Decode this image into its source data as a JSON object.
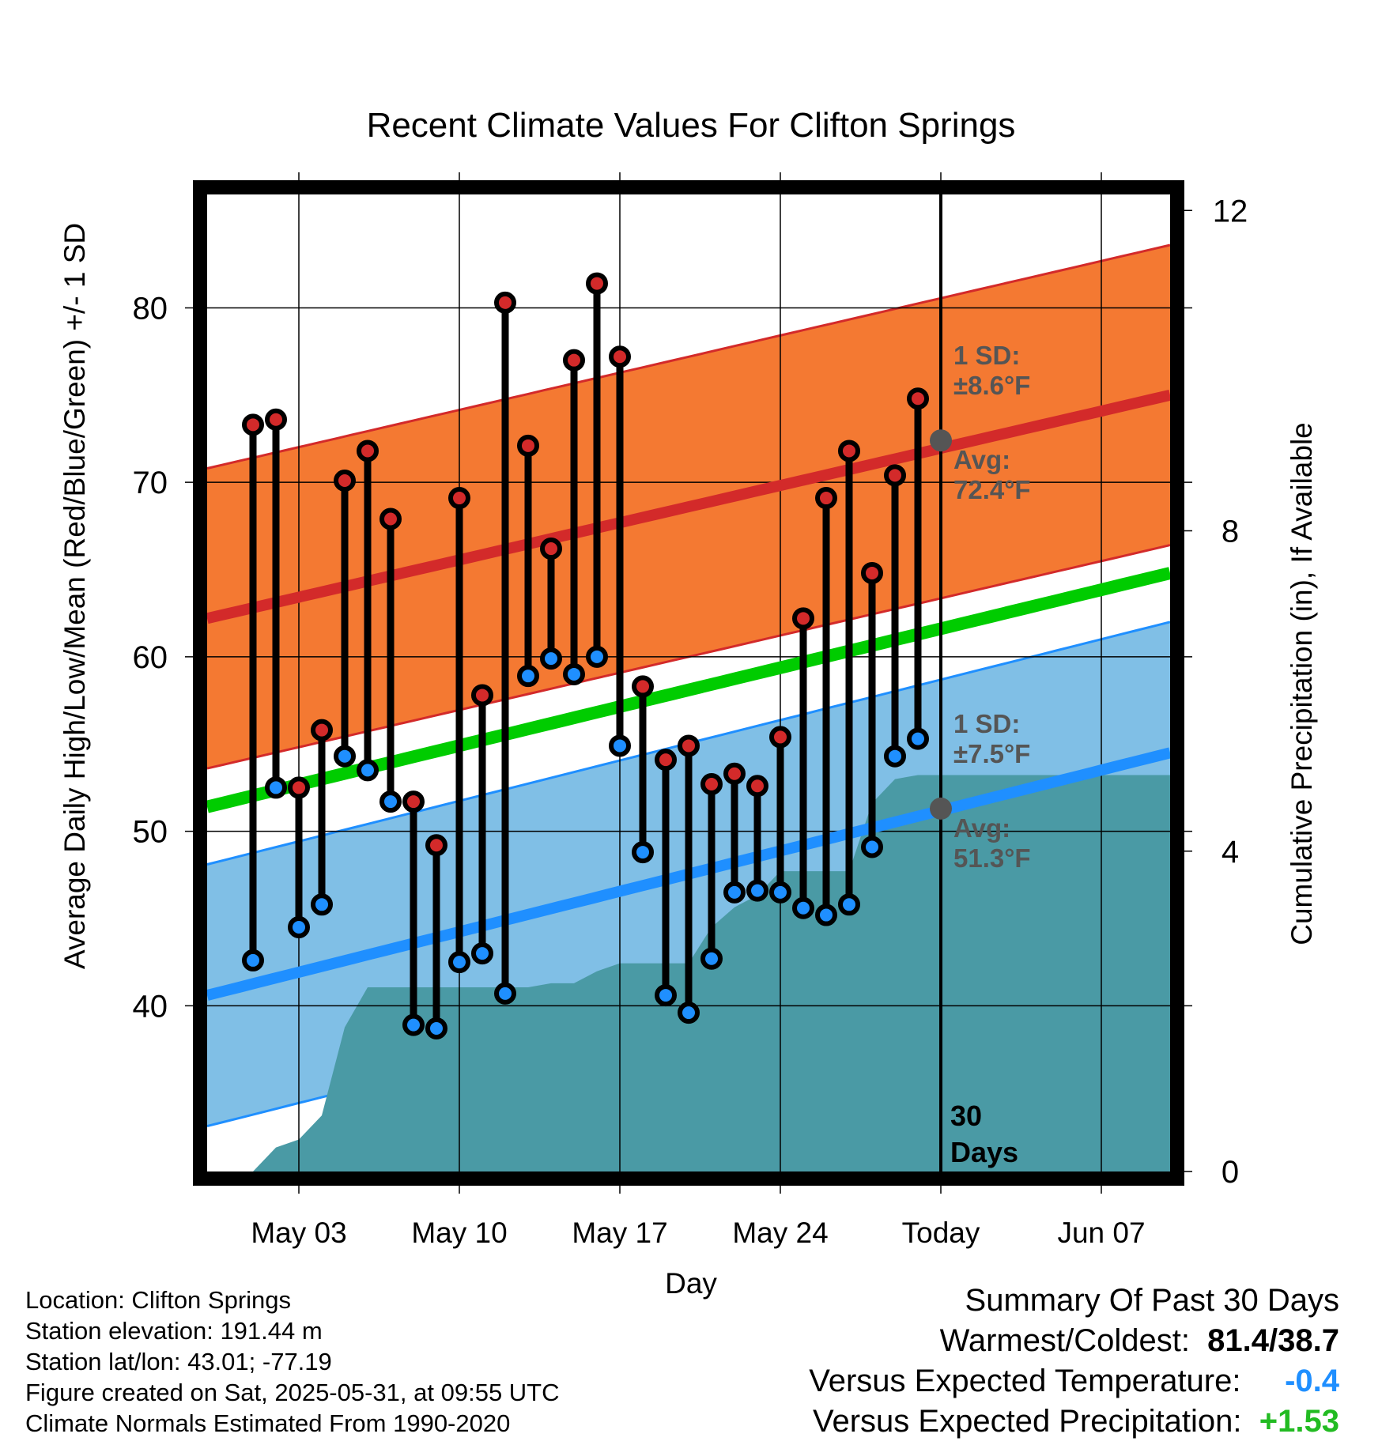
{
  "chart_data": {
    "type": "line",
    "title": "Recent Climate Values For Clifton Springs",
    "xlabel": "Day",
    "ylabel": "Average Daily High/Low/Mean (Red/Blue/Green) +/- 1 SD",
    "y2label": "Cumulative Precipitation (in), If Available",
    "x_range": [
      "Apr 29",
      "Jun 10"
    ],
    "ylim": [
      30.5,
      86.5
    ],
    "y2lim": [
      -0.0,
      12.2
    ],
    "x_ticks": [
      {
        "date": "May 03",
        "label": "May 03"
      },
      {
        "date": "May 10",
        "label": "May 10"
      },
      {
        "date": "May 17",
        "label": "May 17"
      },
      {
        "date": "May 24",
        "label": "May 24"
      },
      {
        "date": "May 31",
        "label": "Today"
      },
      {
        "date": "Jun 07",
        "label": "Jun 07"
      }
    ],
    "y_ticks": [
      40,
      50,
      60,
      70,
      80
    ],
    "y2_ticks": [
      0,
      4,
      8,
      12
    ],
    "grid": true,
    "today": "May 31",
    "today_label": "30\nDays",
    "dates": [
      "May 01",
      "May 02",
      "May 03",
      "May 04",
      "May 05",
      "May 06",
      "May 07",
      "May 08",
      "May 09",
      "May 10",
      "May 11",
      "May 12",
      "May 13",
      "May 14",
      "May 15",
      "May 16",
      "May 17",
      "May 18",
      "May 19",
      "May 20",
      "May 21",
      "May 22",
      "May 23",
      "May 24",
      "May 25",
      "May 26",
      "May 27",
      "May 28",
      "May 29",
      "May 30"
    ],
    "series": [
      {
        "name": "High",
        "color": "#d32a2a",
        "values": [
          73.3,
          73.6,
          52.5,
          55.8,
          70.1,
          71.8,
          67.9,
          51.7,
          49.2,
          69.1,
          57.8,
          80.3,
          72.1,
          66.2,
          77.0,
          81.4,
          77.2,
          58.3,
          54.1,
          54.9,
          52.7,
          53.3,
          52.6,
          55.4,
          62.2,
          69.1,
          71.8,
          64.8,
          70.4,
          74.8
        ]
      },
      {
        "name": "Low",
        "color": "#1f8fff",
        "values": [
          42.6,
          52.5,
          44.5,
          45.8,
          54.3,
          53.5,
          51.7,
          38.9,
          38.7,
          42.5,
          43.0,
          40.7,
          58.9,
          59.9,
          59.0,
          60.0,
          54.9,
          48.8,
          40.6,
          39.6,
          42.7,
          46.5,
          46.6,
          46.5,
          45.6,
          45.2,
          45.8,
          49.1,
          54.3,
          55.3
        ]
      }
    ],
    "normals": {
      "high": {
        "start": 62.2,
        "end": 75.0,
        "sd": 8.6,
        "avg_today": 72.4,
        "color": "#d32a2a",
        "band_color": "#f47932"
      },
      "low": {
        "start": 40.6,
        "end": 54.5,
        "sd": 7.5,
        "avg_today": 51.3,
        "color": "#1f8fff",
        "band_color": "#80bfe6"
      },
      "mean": {
        "start": 51.4,
        "end": 64.8,
        "color": "#00cc00"
      }
    },
    "precip": {
      "color": "#4a9aa5",
      "values": [
        0.0,
        0.3,
        0.4,
        0.7,
        1.8,
        2.3,
        2.3,
        2.3,
        2.3,
        2.3,
        2.3,
        2.3,
        2.3,
        2.35,
        2.35,
        2.5,
        2.6,
        2.6,
        2.6,
        2.6,
        3.05,
        3.3,
        3.45,
        3.75,
        3.75,
        3.75,
        3.75,
        4.6,
        4.9,
        4.95
      ],
      "final": 4.95
    },
    "annotations": {
      "high_sd_line1": "1 SD:",
      "high_sd_line2": "±8.6°F",
      "high_avg_line1": "Avg:",
      "high_avg_line2": "72.4°F",
      "low_sd_line1": "1 SD:",
      "low_sd_line2": "±7.5°F",
      "low_avg_line1": "Avg:",
      "low_avg_line2": "51.3°F",
      "annotation_color": "#555555"
    }
  },
  "info": {
    "location": "Location: Clifton Springs",
    "elevation": "Station elevation: 191.44 m",
    "latlon": "Station lat/lon: 43.01; -77.19",
    "created": "Figure created on Sat, 2025-05-31, at 09:55 UTC",
    "normals": "Climate Normals Estimated From 1990-2020"
  },
  "summary": {
    "title": "Summary Of Past 30 Days",
    "warm_cold_label": "Warmest/Coldest:",
    "warm_cold_value": "81.4/38.7",
    "temp_label": "Versus Expected Temperature:",
    "temp_value": "-0.4",
    "temp_color": "#1f8fff",
    "precip_label": "Versus Expected Precipitation:",
    "precip_value": "+1.53",
    "precip_color": "#22bb22"
  }
}
